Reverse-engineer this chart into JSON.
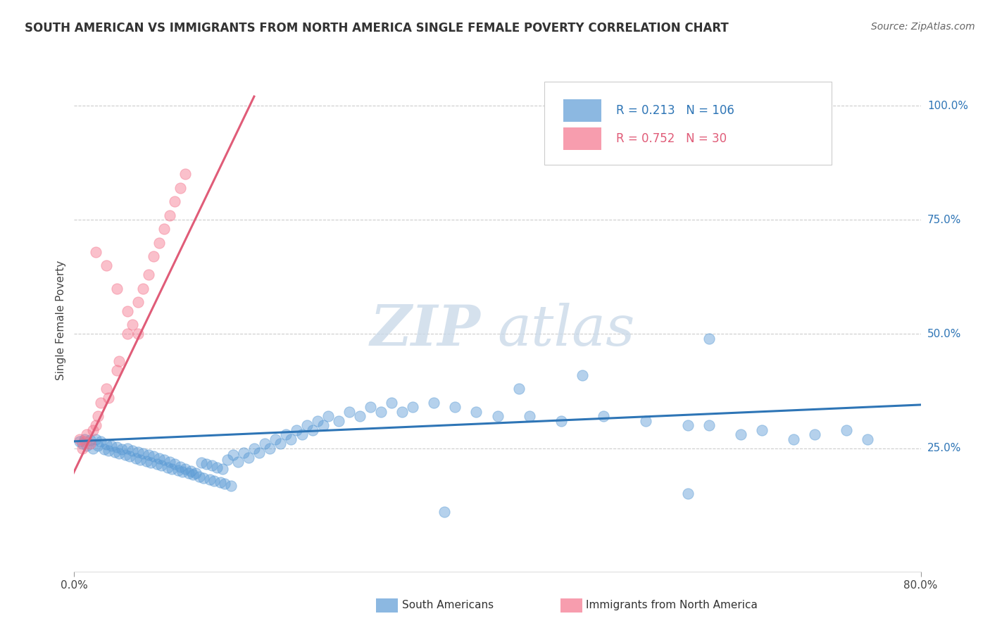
{
  "title": "SOUTH AMERICAN VS IMMIGRANTS FROM NORTH AMERICA SINGLE FEMALE POVERTY CORRELATION CHART",
  "source": "Source: ZipAtlas.com",
  "ylabel": "Single Female Poverty",
  "legend_blue_r": "0.213",
  "legend_blue_n": "106",
  "legend_pink_r": "0.752",
  "legend_pink_n": "30",
  "legend_label_blue": "South Americans",
  "legend_label_pink": "Immigrants from North America",
  "blue_scatter_color": "#5B9BD5",
  "pink_scatter_color": "#F4748C",
  "blue_line_color": "#2E75B6",
  "pink_line_color": "#E05C78",
  "watermark_color": "#D8E4EF",
  "xlim": [
    0.0,
    0.8
  ],
  "ylim": [
    -0.02,
    1.08
  ],
  "right_ytick_values": [
    0.25,
    0.5,
    0.75,
    1.0
  ],
  "right_ytick_labels": [
    "25.0%",
    "50.0%",
    "75.0%",
    "100.0%"
  ],
  "blue_trend_x": [
    0.0,
    0.8
  ],
  "blue_trend_y": [
    0.265,
    0.345
  ],
  "pink_trend_x": [
    -0.005,
    0.17
  ],
  "pink_trend_y": [
    0.175,
    1.02
  ],
  "blue_scatter_x": [
    0.005,
    0.008,
    0.01,
    0.012,
    0.015,
    0.018,
    0.02,
    0.022,
    0.025,
    0.028,
    0.03,
    0.032,
    0.035,
    0.038,
    0.04,
    0.042,
    0.045,
    0.048,
    0.05,
    0.052,
    0.055,
    0.058,
    0.06,
    0.062,
    0.065,
    0.068,
    0.07,
    0.072,
    0.075,
    0.078,
    0.08,
    0.082,
    0.085,
    0.088,
    0.09,
    0.092,
    0.095,
    0.098,
    0.1,
    0.102,
    0.105,
    0.108,
    0.11,
    0.112,
    0.115,
    0.118,
    0.12,
    0.122,
    0.125,
    0.128,
    0.13,
    0.132,
    0.135,
    0.138,
    0.14,
    0.142,
    0.145,
    0.148,
    0.15,
    0.155,
    0.16,
    0.165,
    0.17,
    0.175,
    0.18,
    0.185,
    0.19,
    0.195,
    0.2,
    0.205,
    0.21,
    0.215,
    0.22,
    0.225,
    0.23,
    0.235,
    0.24,
    0.25,
    0.26,
    0.27,
    0.28,
    0.29,
    0.3,
    0.31,
    0.32,
    0.34,
    0.36,
    0.38,
    0.4,
    0.43,
    0.46,
    0.5,
    0.54,
    0.58,
    0.6,
    0.63,
    0.65,
    0.68,
    0.7,
    0.73,
    0.75,
    0.6,
    0.58,
    0.48,
    0.42,
    0.35
  ],
  "blue_scatter_y": [
    0.265,
    0.26,
    0.27,
    0.255,
    0.268,
    0.25,
    0.27,
    0.255,
    0.265,
    0.248,
    0.258,
    0.245,
    0.255,
    0.242,
    0.252,
    0.238,
    0.248,
    0.235,
    0.25,
    0.232,
    0.245,
    0.228,
    0.242,
    0.225,
    0.238,
    0.222,
    0.235,
    0.218,
    0.232,
    0.215,
    0.228,
    0.212,
    0.225,
    0.208,
    0.22,
    0.205,
    0.215,
    0.202,
    0.21,
    0.198,
    0.205,
    0.195,
    0.2,
    0.192,
    0.195,
    0.188,
    0.218,
    0.185,
    0.215,
    0.182,
    0.212,
    0.178,
    0.208,
    0.175,
    0.205,
    0.172,
    0.225,
    0.168,
    0.235,
    0.22,
    0.24,
    0.23,
    0.25,
    0.24,
    0.26,
    0.25,
    0.27,
    0.26,
    0.28,
    0.27,
    0.29,
    0.28,
    0.3,
    0.29,
    0.31,
    0.3,
    0.32,
    0.31,
    0.33,
    0.32,
    0.34,
    0.33,
    0.35,
    0.33,
    0.34,
    0.35,
    0.34,
    0.33,
    0.32,
    0.32,
    0.31,
    0.32,
    0.31,
    0.3,
    0.3,
    0.28,
    0.29,
    0.27,
    0.28,
    0.29,
    0.27,
    0.49,
    0.15,
    0.41,
    0.38,
    0.11
  ],
  "pink_scatter_x": [
    0.005,
    0.008,
    0.01,
    0.012,
    0.015,
    0.018,
    0.02,
    0.022,
    0.025,
    0.03,
    0.032,
    0.04,
    0.042,
    0.05,
    0.055,
    0.06,
    0.065,
    0.07,
    0.075,
    0.08,
    0.085,
    0.09,
    0.095,
    0.1,
    0.105,
    0.02,
    0.03,
    0.04,
    0.05,
    0.06
  ],
  "pink_scatter_y": [
    0.27,
    0.25,
    0.265,
    0.28,
    0.26,
    0.29,
    0.3,
    0.32,
    0.35,
    0.38,
    0.36,
    0.42,
    0.44,
    0.5,
    0.52,
    0.57,
    0.6,
    0.63,
    0.67,
    0.7,
    0.73,
    0.76,
    0.79,
    0.82,
    0.85,
    0.68,
    0.65,
    0.6,
    0.55,
    0.5
  ]
}
